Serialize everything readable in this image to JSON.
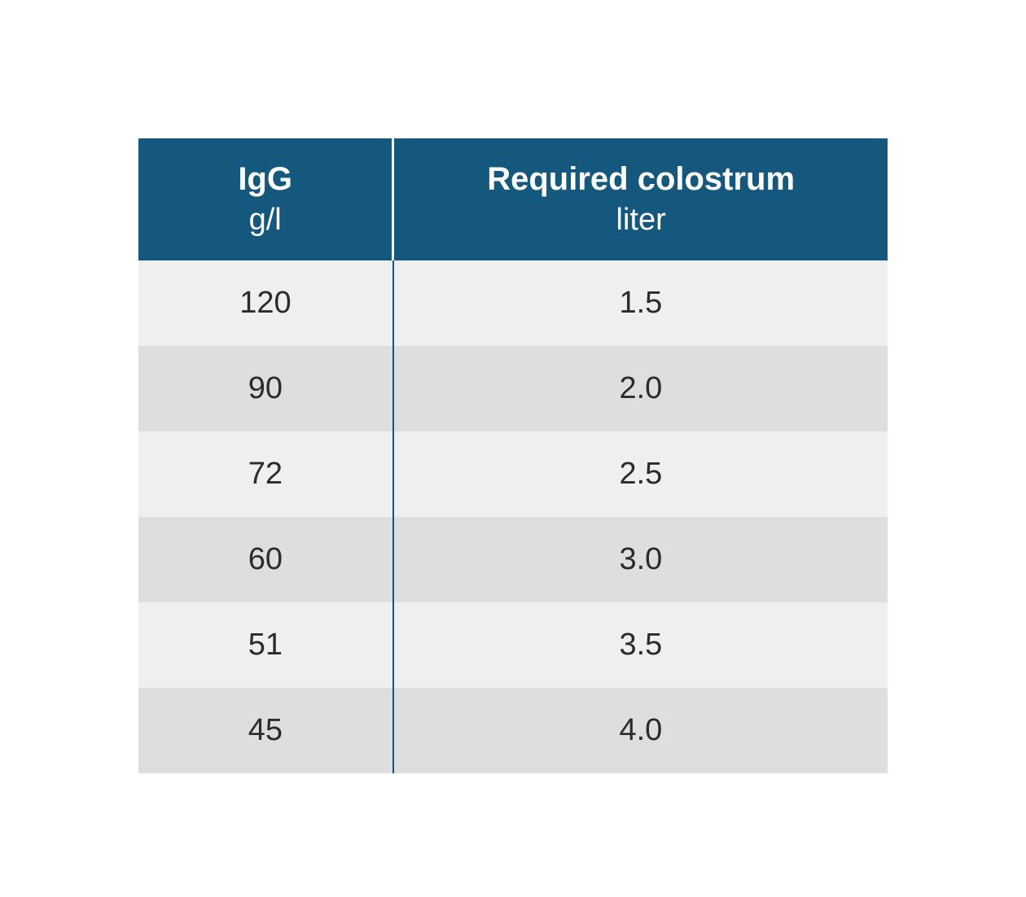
{
  "table": {
    "header_bg": "#14597d",
    "divider_color": "#14597d",
    "row_bg_odd": "#efefef",
    "row_bg_even": "#dedede",
    "text_color": "#2b2b2b",
    "columns": [
      {
        "title": "IgG",
        "unit": "g/l"
      },
      {
        "title": "Required colostrum",
        "unit": "liter"
      }
    ],
    "rows": [
      {
        "igg": "120",
        "colostrum": "1.5"
      },
      {
        "igg": "90",
        "colostrum": "2.0"
      },
      {
        "igg": "72",
        "colostrum": "2.5"
      },
      {
        "igg": "60",
        "colostrum": "3.0"
      },
      {
        "igg": "51",
        "colostrum": "3.5"
      },
      {
        "igg": "45",
        "colostrum": "4.0"
      }
    ]
  }
}
